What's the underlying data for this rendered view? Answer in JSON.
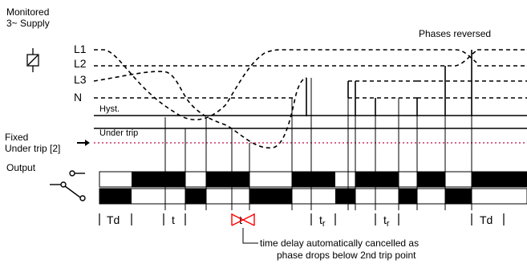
{
  "labels": {
    "supply_line1": "Monitored",
    "supply_line2": "3~ Supply",
    "phases_reversed": "Phases reversed",
    "l1": "L1",
    "l2": "L2",
    "l3": "L3",
    "n": "N",
    "hyst": "Hyst.",
    "under_trip": "Under trip",
    "fixed_line1": "Fixed",
    "fixed_line2": "Under trip [2]",
    "output": "Output",
    "note_line1": "time delay automatically cancelled as",
    "note_line2": "phase drops below 2nd trip point"
  },
  "timing": {
    "td_start": "Td",
    "t1": "t",
    "t_cancelled": "t",
    "tr_base": "t",
    "tr_sub": "r",
    "td_end": "Td"
  },
  "colors": {
    "fixed_trip_line": "#cc3366",
    "cancel_mark": "#ff0000",
    "ink": "#000000"
  },
  "icons": {
    "relay": "relay-coil-icon",
    "arrow": "arrow-right-icon",
    "no_contact": "normally-open-contact-icon",
    "co_contact": "changeover-contact-icon"
  }
}
